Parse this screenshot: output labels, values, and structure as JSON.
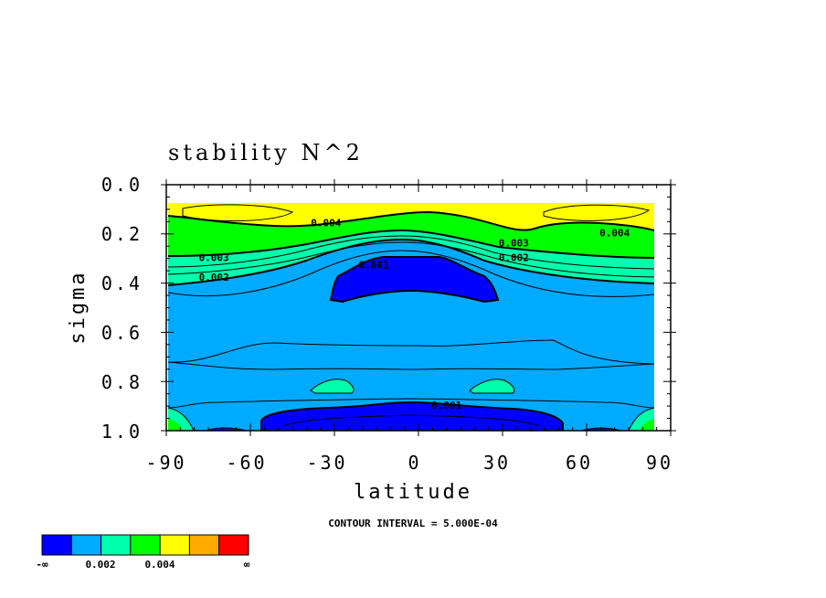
{
  "chart_data": {
    "type": "contour",
    "title": "stability N^2",
    "xlabel": "latitude",
    "ylabel": "sigma",
    "xlim": [
      -90,
      90
    ],
    "ylim": [
      1.0,
      0.0
    ],
    "x_ticks": [
      "-90",
      "-60",
      "-30",
      "0",
      "30",
      "60",
      "90"
    ],
    "y_ticks": [
      "0.0",
      "0.2",
      "0.4",
      "0.6",
      "0.8",
      "1.0"
    ],
    "contour_interval_text": "CONTOUR INTERVAL = 5.000E-04",
    "contour_labels": [
      {
        "text": "0.004",
        "lat": -33,
        "sigma": 0.17
      },
      {
        "text": "0.004",
        "lat": 70,
        "sigma": 0.21
      },
      {
        "text": "0.003",
        "lat": -73,
        "sigma": 0.31
      },
      {
        "text": "0.003",
        "lat": 34,
        "sigma": 0.25
      },
      {
        "text": "0.002",
        "lat": -73,
        "sigma": 0.39
      },
      {
        "text": "0.002",
        "lat": 34,
        "sigma": 0.31
      },
      {
        "text": "0.001",
        "lat": -16,
        "sigma": 0.34
      },
      {
        "text": "0.001",
        "lat": 10,
        "sigma": 0.91
      }
    ],
    "fill_levels": [
      {
        "range": "<0.001",
        "color": "#0000ff"
      },
      {
        "range": "0.001-0.002",
        "color": "#00aaff"
      },
      {
        "range": "0.002-0.003",
        "color": "#00ffaa"
      },
      {
        "range": "0.003-0.004",
        "color": "#00ff00"
      },
      {
        "range": "0.004-0.005",
        "color": "#ffff00"
      },
      {
        "range": "0.005-0.006",
        "color": "#ffaa00"
      },
      {
        "range": ">0.006",
        "color": "#ff0000"
      }
    ],
    "colorbar_labels": [
      "-∞",
      "0.002",
      "0.004",
      "∞"
    ]
  }
}
